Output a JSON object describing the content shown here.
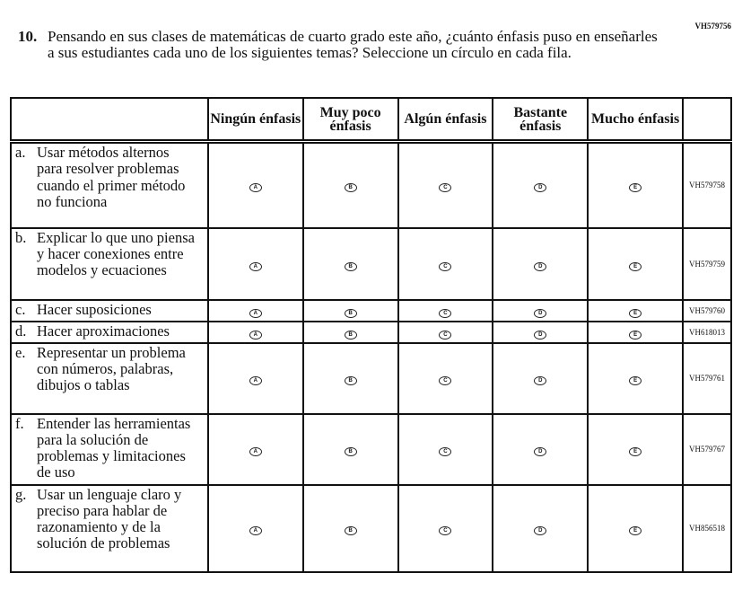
{
  "question_id": "VH579756",
  "question_number": "10.",
  "question_text": "Pensando en sus clases de matemáticas de cuarto grado este año, ¿cuánto énfasis puso en enseñarles a sus estudiantes cada uno de los siguientes temas? Seleccione un círculo en cada fila.",
  "columns": [
    "Ningún énfasis",
    "Muy poco énfasis",
    "Algún énfasis",
    "Bastante énfasis",
    "Mucho énfasis"
  ],
  "options": [
    "A",
    "B",
    "C",
    "D",
    "E"
  ],
  "rows": [
    {
      "letter": "a.",
      "text": "Usar métodos alternos para resolver problemas cuando el primer método no funciona",
      "id": "VH579758"
    },
    {
      "letter": "b.",
      "text": "Explicar lo que uno piensa y hacer conexiones entre modelos y ecuaciones",
      "id": "VH579759"
    },
    {
      "letter": "c.",
      "text": "Hacer suposiciones",
      "id": "VH579760"
    },
    {
      "letter": "d.",
      "text": "Hacer aproximaciones",
      "id": "VH618013"
    },
    {
      "letter": "e.",
      "text": "Representar un problema con números, palabras, dibujos o tablas",
      "id": "VH579761"
    },
    {
      "letter": "f.",
      "text": "Entender las herramientas para la solución de problemas y limitaciones de uso",
      "id": "VH579767"
    },
    {
      "letter": "g.",
      "text": "Usar un lenguaje claro y preciso para hablar de razonamiento y de la solución de problemas",
      "id": "VH856518"
    }
  ]
}
